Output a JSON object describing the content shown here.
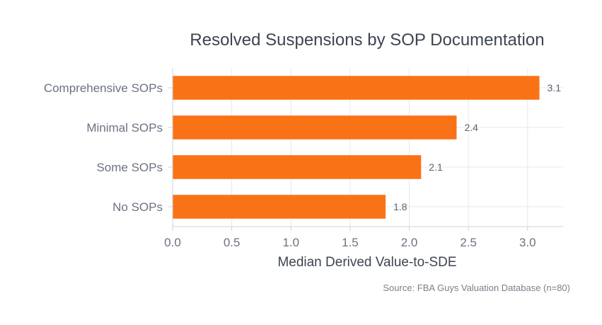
{
  "chart_data": {
    "type": "bar",
    "orientation": "horizontal",
    "title": "Resolved Suspensions by SOP Documentation",
    "xlabel": "Median Derived Value-to-SDE",
    "ylabel": "",
    "categories": [
      "Comprehensive SOPs",
      "Minimal SOPs",
      "Some SOPs",
      "No SOPs"
    ],
    "values": [
      3.1,
      2.4,
      2.1,
      1.8
    ],
    "data_labels": [
      "3.1",
      "2.4",
      "2.1",
      "1.8"
    ],
    "xlim": [
      0,
      3.3
    ],
    "x_ticks": [
      0,
      0.5,
      1,
      1.5,
      2,
      2.5,
      3
    ],
    "x_tick_labels": [
      "0.0",
      "0.5",
      "1.0",
      "1.5",
      "2.0",
      "2.5",
      "3.0"
    ],
    "grid": true,
    "bar_color": "#f97316",
    "source": "Source: FBA Guys Valuation Database (n=80)"
  }
}
